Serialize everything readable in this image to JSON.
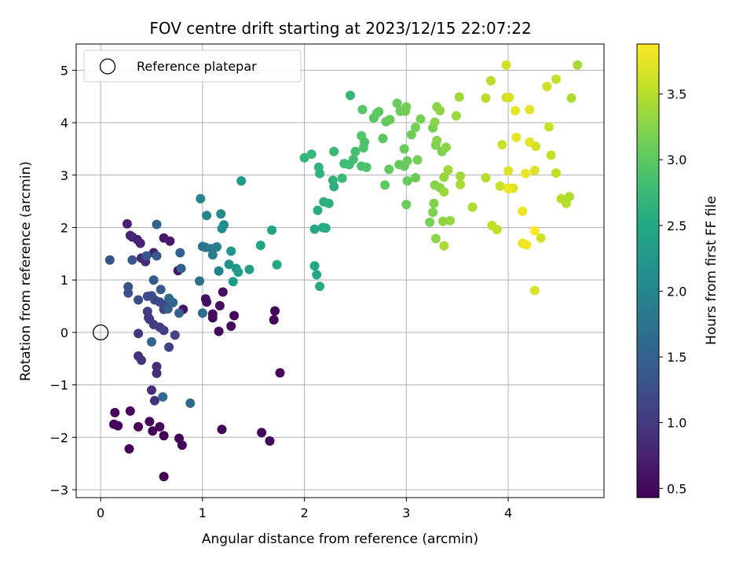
{
  "chart_data": {
    "type": "scatter",
    "title": "FOV centre drift starting at 2023/12/15 22:07:22",
    "xlabel": "Angular distance from reference (arcmin)",
    "ylabel": "Rotation from reference (arcmin)",
    "xlim": [
      -0.24,
      4.94
    ],
    "ylim": [
      -3.15,
      5.5
    ],
    "xticks": [
      0,
      1,
      2,
      3,
      4
    ],
    "yticks": [
      -3,
      -2,
      -1,
      0,
      1,
      2,
      3,
      4,
      5
    ],
    "grid": true,
    "legend": {
      "position": "top-left",
      "entries": [
        {
          "label": "Reference platepar",
          "marker": "open-circle"
        }
      ]
    },
    "reference_point": {
      "x": 0,
      "y": 0
    },
    "colorbar": {
      "label": "Hours from first FF file",
      "colormap": "viridis",
      "range": [
        0.43,
        3.88
      ],
      "ticks": [
        0.5,
        1.0,
        1.5,
        2.0,
        2.5,
        3.0,
        3.5
      ],
      "tick_labels": [
        "0.5",
        "1.0",
        "1.5",
        "2.0",
        "2.5",
        "3.0",
        "3.5"
      ]
    },
    "points": [
      [
        0.62,
        -2.75,
        0.45
      ],
      [
        0.28,
        -2.22,
        0.46
      ],
      [
        0.8,
        -2.15,
        0.47
      ],
      [
        0.77,
        -2.02,
        0.46
      ],
      [
        0.62,
        -1.97,
        0.45
      ],
      [
        0.51,
        -1.88,
        0.47
      ],
      [
        0.58,
        -1.8,
        0.48
      ],
      [
        0.37,
        -1.8,
        0.48
      ],
      [
        0.48,
        -1.7,
        0.5
      ],
      [
        0.17,
        -1.78,
        0.46
      ],
      [
        0.13,
        -1.75,
        0.47
      ],
      [
        0.14,
        -1.53,
        0.47
      ],
      [
        0.29,
        -1.5,
        0.48
      ],
      [
        1.19,
        -1.85,
        0.47
      ],
      [
        1.58,
        -1.91,
        0.47
      ],
      [
        1.66,
        -2.07,
        0.48
      ],
      [
        1.76,
        -0.77,
        0.48
      ],
      [
        1.7,
        0.24,
        0.48
      ],
      [
        1.71,
        0.41,
        0.49
      ],
      [
        1.31,
        0.32,
        0.5
      ],
      [
        1.28,
        0.12,
        0.51
      ],
      [
        1.16,
        0.02,
        0.52
      ],
      [
        1.1,
        0.28,
        0.52
      ],
      [
        1.1,
        0.35,
        0.53
      ],
      [
        1.17,
        0.51,
        0.55
      ],
      [
        1.2,
        0.77,
        0.56
      ],
      [
        1.04,
        0.58,
        0.57
      ],
      [
        1.03,
        0.64,
        0.58
      ],
      [
        0.81,
        0.44,
        0.6
      ],
      [
        0.76,
        1.18,
        0.62
      ],
      [
        0.62,
        1.8,
        0.64
      ],
      [
        0.68,
        1.74,
        0.66
      ],
      [
        0.52,
        1.52,
        0.68
      ],
      [
        0.31,
        1.82,
        0.7
      ],
      [
        0.26,
        2.07,
        0.72
      ],
      [
        0.36,
        1.77,
        0.74
      ],
      [
        0.39,
        1.7,
        0.76
      ],
      [
        0.29,
        1.85,
        0.78
      ],
      [
        0.4,
        1.42,
        0.8
      ],
      [
        0.44,
        1.35,
        0.82
      ],
      [
        0.55,
        -0.65,
        0.84
      ],
      [
        0.55,
        -0.78,
        0.86
      ],
      [
        0.5,
        -1.1,
        0.88
      ],
      [
        0.53,
        -1.3,
        0.9
      ],
      [
        0.37,
        -0.45,
        0.92
      ],
      [
        0.4,
        -0.53,
        0.94
      ],
      [
        0.37,
        -0.02,
        0.96
      ],
      [
        0.47,
        0.28,
        0.98
      ],
      [
        0.46,
        0.4,
        1.0
      ],
      [
        0.48,
        0.25,
        1.02
      ],
      [
        0.52,
        0.15,
        1.04
      ],
      [
        0.58,
        0.1,
        1.06
      ],
      [
        0.62,
        0.04,
        1.08
      ],
      [
        0.67,
        -0.28,
        1.1
      ],
      [
        0.73,
        -0.05,
        1.12
      ],
      [
        0.62,
        0.44,
        1.14
      ],
      [
        0.65,
        0.54,
        1.16
      ],
      [
        0.58,
        0.58,
        1.18
      ],
      [
        0.53,
        0.62,
        1.2
      ],
      [
        0.5,
        0.7,
        1.22
      ],
      [
        0.46,
        0.69,
        1.24
      ],
      [
        0.37,
        0.62,
        1.26
      ],
      [
        0.27,
        0.87,
        1.28
      ],
      [
        0.27,
        0.75,
        1.3
      ],
      [
        0.09,
        1.38,
        1.32
      ],
      [
        0.31,
        1.38,
        1.34
      ],
      [
        0.55,
        1.46,
        1.36
      ],
      [
        0.45,
        1.46,
        1.38
      ],
      [
        0.52,
        1.0,
        1.4
      ],
      [
        0.59,
        0.82,
        1.42
      ],
      [
        0.66,
        0.45,
        1.44
      ],
      [
        0.77,
        0.37,
        1.46
      ],
      [
        0.78,
        1.52,
        1.48
      ],
      [
        0.79,
        1.22,
        1.5
      ],
      [
        0.55,
        2.06,
        1.52
      ],
      [
        0.71,
        0.57,
        1.54
      ],
      [
        0.5,
        -0.18,
        1.56
      ],
      [
        0.61,
        -1.23,
        1.58
      ],
      [
        0.88,
        -1.35,
        1.6
      ],
      [
        0.67,
        0.65,
        1.62
      ],
      [
        1.0,
        0.37,
        1.66
      ],
      [
        0.97,
        0.98,
        1.7
      ],
      [
        1.0,
        1.64,
        1.74
      ],
      [
        1.03,
        1.62,
        1.78
      ],
      [
        1.09,
        1.6,
        1.82
      ],
      [
        1.1,
        1.48,
        1.86
      ],
      [
        1.14,
        1.63,
        1.9
      ],
      [
        1.16,
        1.17,
        1.94
      ],
      [
        1.04,
        2.23,
        1.98
      ],
      [
        0.98,
        2.55,
        2.02
      ],
      [
        1.18,
        2.26,
        2.06
      ],
      [
        1.21,
        2.05,
        2.1
      ],
      [
        1.19,
        1.98,
        2.14
      ],
      [
        1.26,
        1.3,
        2.18
      ],
      [
        1.28,
        1.55,
        2.22
      ],
      [
        1.33,
        1.22,
        2.26
      ],
      [
        1.3,
        0.97,
        2.3
      ],
      [
        1.35,
        1.15,
        2.34
      ],
      [
        1.46,
        1.2,
        2.38
      ],
      [
        1.57,
        1.66,
        2.42
      ],
      [
        1.68,
        1.95,
        2.46
      ],
      [
        1.73,
        1.29,
        2.48
      ],
      [
        1.38,
        2.89,
        2.3
      ],
      [
        2.1,
        1.27,
        2.5
      ],
      [
        2.12,
        1.1,
        2.52
      ],
      [
        2.15,
        0.88,
        2.54
      ],
      [
        2.1,
        1.97,
        2.5
      ],
      [
        2.18,
        2.0,
        2.52
      ],
      [
        2.21,
        1.99,
        2.54
      ],
      [
        2.13,
        2.33,
        2.56
      ],
      [
        2.19,
        2.49,
        2.58
      ],
      [
        2.24,
        2.46,
        2.6
      ],
      [
        2.29,
        2.78,
        2.62
      ],
      [
        2.28,
        2.9,
        2.64
      ],
      [
        2.15,
        3.03,
        2.66
      ],
      [
        2.14,
        3.15,
        2.68
      ],
      [
        2.0,
        3.33,
        2.7
      ],
      [
        2.07,
        3.4,
        2.72
      ],
      [
        2.29,
        3.45,
        2.74
      ],
      [
        2.37,
        2.94,
        2.76
      ],
      [
        2.39,
        3.22,
        2.78
      ],
      [
        2.44,
        3.2,
        2.8
      ],
      [
        2.48,
        3.3,
        2.82
      ],
      [
        2.5,
        3.45,
        2.84
      ],
      [
        2.56,
        3.17,
        2.86
      ],
      [
        2.61,
        3.15,
        2.88
      ],
      [
        2.59,
        3.63,
        2.9
      ],
      [
        2.58,
        3.52,
        2.92
      ],
      [
        2.56,
        3.75,
        2.94
      ],
      [
        2.57,
        4.25,
        2.96
      ],
      [
        2.45,
        4.52,
        2.7
      ],
      [
        2.68,
        4.09,
        2.98
      ],
      [
        2.73,
        4.21,
        3.0
      ],
      [
        2.71,
        4.18,
        3.02
      ],
      [
        2.8,
        4.02,
        3.04
      ],
      [
        2.84,
        4.06,
        3.06
      ],
      [
        2.91,
        4.37,
        3.08
      ],
      [
        2.94,
        4.22,
        3.1
      ],
      [
        2.99,
        4.22,
        3.12
      ],
      [
        3.0,
        4.3,
        3.14
      ],
      [
        2.77,
        3.7,
        3.0
      ],
      [
        2.83,
        3.11,
        3.02
      ],
      [
        2.93,
        3.2,
        3.04
      ],
      [
        2.98,
        3.17,
        3.06
      ],
      [
        3.01,
        3.27,
        3.08
      ],
      [
        2.98,
        3.5,
        3.1
      ],
      [
        3.05,
        3.77,
        3.12
      ],
      [
        3.09,
        3.91,
        3.14
      ],
      [
        3.14,
        4.07,
        3.16
      ],
      [
        3.26,
        3.9,
        3.18
      ],
      [
        2.79,
        2.81,
        3.02
      ],
      [
        3.01,
        2.89,
        3.06
      ],
      [
        3.09,
        2.95,
        3.1
      ],
      [
        3.11,
        3.29,
        3.14
      ],
      [
        3.0,
        2.44,
        3.1
      ],
      [
        3.23,
        2.1,
        3.18
      ],
      [
        3.26,
        2.29,
        3.2
      ],
      [
        3.27,
        2.46,
        3.22
      ],
      [
        3.28,
        2.81,
        3.24
      ],
      [
        3.33,
        2.76,
        3.26
      ],
      [
        3.35,
        3.45,
        3.2
      ],
      [
        3.29,
        3.57,
        3.22
      ],
      [
        3.3,
        3.66,
        3.24
      ],
      [
        3.39,
        3.53,
        3.26
      ],
      [
        3.29,
        1.79,
        3.28
      ],
      [
        3.36,
        2.12,
        3.3
      ],
      [
        3.43,
        2.13,
        3.32
      ],
      [
        3.3,
        4.3,
        3.28
      ],
      [
        3.33,
        4.23,
        3.3
      ],
      [
        3.28,
        4.01,
        3.26
      ],
      [
        3.37,
        2.96,
        3.34
      ],
      [
        3.37,
        2.68,
        3.36
      ],
      [
        3.41,
        3.1,
        3.38
      ],
      [
        3.49,
        4.13,
        3.36
      ],
      [
        3.52,
        4.49,
        3.38
      ],
      [
        3.53,
        2.98,
        3.4
      ],
      [
        3.53,
        2.82,
        3.42
      ],
      [
        3.37,
        1.65,
        3.44
      ],
      [
        3.65,
        2.39,
        3.46
      ],
      [
        3.78,
        2.95,
        3.48
      ],
      [
        3.78,
        4.47,
        3.5
      ],
      [
        3.83,
        4.8,
        3.52
      ],
      [
        3.89,
        1.96,
        3.54
      ],
      [
        3.84,
        2.04,
        3.56
      ],
      [
        3.92,
        2.79,
        3.58
      ],
      [
        3.94,
        3.58,
        3.6
      ],
      [
        3.98,
        4.48,
        3.62
      ],
      [
        3.98,
        5.1,
        3.64
      ],
      [
        4.0,
        2.75,
        3.66
      ],
      [
        4.01,
        4.48,
        3.68
      ],
      [
        4.05,
        2.75,
        3.7
      ],
      [
        4.0,
        3.08,
        3.72
      ],
      [
        4.07,
        4.23,
        3.74
      ],
      [
        4.08,
        3.72,
        3.76
      ],
      [
        4.14,
        2.31,
        3.78
      ],
      [
        4.14,
        1.7,
        3.8
      ],
      [
        4.18,
        1.67,
        3.82
      ],
      [
        4.17,
        3.03,
        3.78
      ],
      [
        4.21,
        3.63,
        3.76
      ],
      [
        4.21,
        4.25,
        3.74
      ],
      [
        4.26,
        3.09,
        3.7
      ],
      [
        4.26,
        0.8,
        3.68
      ],
      [
        4.27,
        3.55,
        3.66
      ],
      [
        4.32,
        1.8,
        3.64
      ],
      [
        4.38,
        4.69,
        3.62
      ],
      [
        4.4,
        3.92,
        3.6
      ],
      [
        4.42,
        3.38,
        3.58
      ],
      [
        4.47,
        4.83,
        3.56
      ],
      [
        4.47,
        3.04,
        3.54
      ],
      [
        4.52,
        2.55,
        3.52
      ],
      [
        4.57,
        2.46,
        3.5
      ],
      [
        4.56,
        2.53,
        3.48
      ],
      [
        4.6,
        2.59,
        3.46
      ],
      [
        4.62,
        4.47,
        3.44
      ],
      [
        4.68,
        5.1,
        3.42
      ],
      [
        4.0,
        2.74,
        3.78
      ],
      [
        4.26,
        1.94,
        3.88
      ]
    ]
  }
}
